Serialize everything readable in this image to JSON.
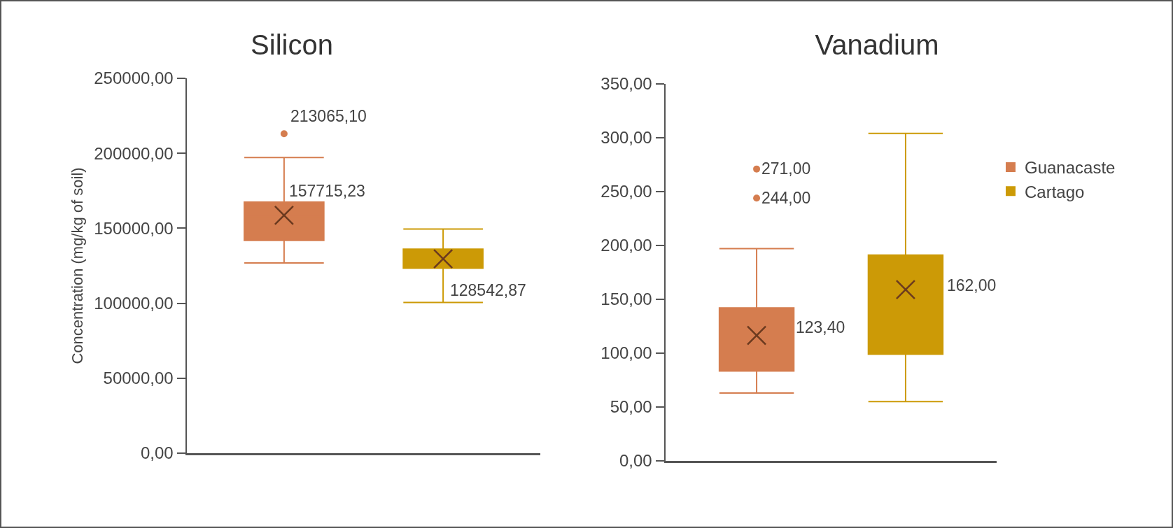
{
  "chart_data": [
    {
      "type": "box",
      "title": "Silicon",
      "ylabel": "Concentration (mg/kg of soil)",
      "categories": [
        null
      ],
      "ylim": [
        0,
        250000
      ],
      "yticks": [
        {
          "value": 0,
          "label": "0,00"
        },
        {
          "value": 50000,
          "label": "50000,00"
        },
        {
          "value": 100000,
          "label": "100000,00"
        },
        {
          "value": 150000,
          "label": "150000,00"
        },
        {
          "value": 200000,
          "label": "200000,00"
        },
        {
          "value": 250000,
          "label": "250000,00"
        }
      ],
      "series": [
        {
          "color": "#d57d4f",
          "boxes": [
            {
              "low": 126900,
              "q1": 141900,
              "median": 157715.23,
              "q3": 167400,
              "high": 197200,
              "mean": 158600,
              "outliers": [
                213065.1
              ]
            }
          ]
        },
        {
          "color": "#cc9a06",
          "boxes": [
            {
              "low": 100500,
              "q1": 123400,
              "median": 128542.87,
              "q3": 136100,
              "high": 149500,
              "mean": 129600
            }
          ]
        }
      ],
      "annotations": [
        "213065,10",
        "157715,23",
        "128542,87"
      ],
      "marker": "cross",
      "legend": false,
      "grid": false
    },
    {
      "type": "box",
      "title": "Vanadium",
      "categories": [
        null
      ],
      "ylim": [
        0,
        350
      ],
      "yticks": [
        {
          "value": 0,
          "label": "0,00"
        },
        {
          "value": 50,
          "label": "50,00"
        },
        {
          "value": 100,
          "label": "100,00"
        },
        {
          "value": 150,
          "label": "150,00"
        },
        {
          "value": 200,
          "label": "200,00"
        },
        {
          "value": 250,
          "label": "250,00"
        },
        {
          "value": 300,
          "label": "300,00"
        },
        {
          "value": 350,
          "label": "350,00"
        }
      ],
      "series": [
        {
          "name": "Guanacaste",
          "color": "#d57d4f",
          "boxes": [
            {
              "low": 63,
              "q1": 83.5,
              "median": 123.4,
              "q3": 142,
              "high": 197,
              "mean": 116.4,
              "outliers": [
                271,
                244
              ]
            }
          ]
        },
        {
          "name": "Cartago",
          "color": "#cc9a06",
          "boxes": [
            {
              "low": 55,
              "q1": 99,
              "median": 162,
              "q3": 191,
              "high": 304,
              "mean": 159
            }
          ]
        }
      ],
      "annotations": [
        "271,00",
        "244,00",
        "123,40",
        "162,00"
      ],
      "marker": "cross",
      "legend": "top right",
      "grid": false
    }
  ]
}
